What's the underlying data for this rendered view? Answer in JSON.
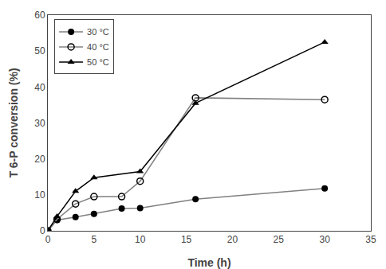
{
  "chart_data": {
    "type": "line",
    "xlabel": "Time (h)",
    "ylabel": "T 6-P conversion (%)",
    "series": [
      {
        "name": "30 °C",
        "x": [
          0,
          1,
          3,
          5,
          8,
          10,
          16,
          30
        ],
        "values": [
          0,
          3.0,
          3.8,
          4.7,
          6.2,
          6.3,
          8.8,
          11.8
        ],
        "marker": "circle",
        "color": "gray"
      },
      {
        "name": "40 °C",
        "x": [
          0,
          1,
          3,
          5,
          8,
          10,
          16,
          30
        ],
        "values": [
          0,
          3.2,
          7.5,
          9.5,
          9.5,
          13.8,
          37.0,
          36.5
        ],
        "marker": "circle-open",
        "color": "gray"
      },
      {
        "name": "50 °C",
        "x": [
          0,
          1,
          3,
          5,
          10,
          16,
          30
        ],
        "values": [
          0,
          4.0,
          11.0,
          14.8,
          16.5,
          35.5,
          52.5
        ],
        "marker": "triangle-up",
        "color": "black"
      }
    ],
    "xlim": [
      0,
      35
    ],
    "ylim": [
      0,
      60
    ],
    "xticks": [
      0,
      5,
      10,
      15,
      20,
      25,
      30,
      35
    ],
    "yticks": [
      0,
      10,
      20,
      30,
      40,
      50,
      60
    ],
    "legend": "upper left",
    "grid": false
  }
}
